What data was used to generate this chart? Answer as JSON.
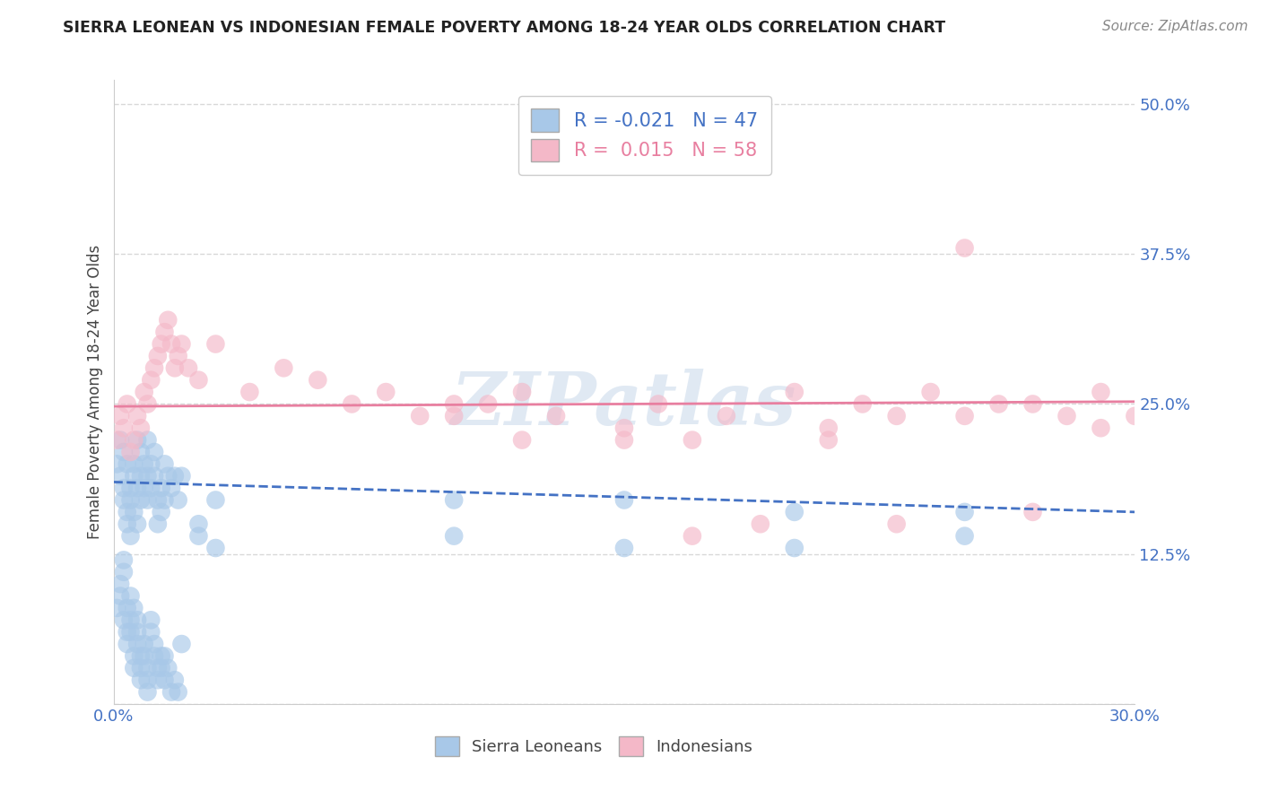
{
  "title": "SIERRA LEONEAN VS INDONESIAN FEMALE POVERTY AMONG 18-24 YEAR OLDS CORRELATION CHART",
  "source": "Source: ZipAtlas.com",
  "ylabel": "Female Poverty Among 18-24 Year Olds",
  "xlim": [
    0.0,
    0.3
  ],
  "ylim": [
    0.0,
    0.52
  ],
  "xticks": [
    0.0,
    0.05,
    0.1,
    0.15,
    0.2,
    0.25,
    0.3
  ],
  "xticklabels": [
    "0.0%",
    "",
    "",
    "",
    "",
    "",
    "30.0%"
  ],
  "yticks": [
    0.0,
    0.125,
    0.25,
    0.375,
    0.5
  ],
  "yticklabels": [
    "",
    "12.5%",
    "25.0%",
    "37.5%",
    "50.0%"
  ],
  "sierra_color": "#a8c8e8",
  "indonesia_color": "#f4b8c8",
  "sierra_line_color": "#4472c4",
  "indonesia_line_color": "#e87fa0",
  "watermark": "ZIPatlas",
  "sl_trend_y0": 0.185,
  "sl_trend_y1": 0.16,
  "in_trend_y0": 0.248,
  "in_trend_y1": 0.252,
  "sierra_x": [
    0.001,
    0.002,
    0.002,
    0.003,
    0.003,
    0.003,
    0.004,
    0.004,
    0.004,
    0.005,
    0.005,
    0.005,
    0.006,
    0.006,
    0.006,
    0.007,
    0.007,
    0.007,
    0.008,
    0.008,
    0.008,
    0.009,
    0.009,
    0.01,
    0.01,
    0.01,
    0.011,
    0.011,
    0.012,
    0.012,
    0.013,
    0.013,
    0.014,
    0.014,
    0.015,
    0.015,
    0.016,
    0.017,
    0.018,
    0.019,
    0.02,
    0.025,
    0.03,
    0.1,
    0.15,
    0.2,
    0.25
  ],
  "sierra_y": [
    0.2,
    0.22,
    0.19,
    0.21,
    0.18,
    0.17,
    0.2,
    0.16,
    0.15,
    0.18,
    0.17,
    0.14,
    0.2,
    0.19,
    0.16,
    0.22,
    0.18,
    0.15,
    0.21,
    0.19,
    0.17,
    0.2,
    0.18,
    0.22,
    0.19,
    0.17,
    0.2,
    0.18,
    0.21,
    0.19,
    0.17,
    0.15,
    0.18,
    0.16,
    0.2,
    0.17,
    0.19,
    0.18,
    0.19,
    0.17,
    0.19,
    0.15,
    0.17,
    0.17,
    0.17,
    0.16,
    0.16
  ],
  "sierra_y_low": [
    0.08,
    0.1,
    0.09,
    0.07,
    0.11,
    0.12,
    0.06,
    0.05,
    0.08,
    0.07,
    0.09,
    0.06,
    0.08,
    0.04,
    0.03,
    0.05,
    0.07,
    0.06,
    0.04,
    0.03,
    0.02,
    0.05,
    0.04,
    0.03,
    0.02,
    0.01,
    0.07,
    0.06,
    0.05,
    0.04,
    0.03,
    0.02,
    0.04,
    0.03,
    0.02,
    0.04,
    0.03,
    0.01,
    0.02,
    0.01,
    0.05,
    0.14,
    0.13,
    0.14,
    0.13,
    0.13,
    0.14
  ],
  "indonesia_x": [
    0.001,
    0.002,
    0.003,
    0.004,
    0.005,
    0.006,
    0.007,
    0.008,
    0.009,
    0.01,
    0.011,
    0.012,
    0.013,
    0.014,
    0.015,
    0.016,
    0.017,
    0.018,
    0.019,
    0.02,
    0.022,
    0.025,
    0.03,
    0.04,
    0.05,
    0.06,
    0.07,
    0.08,
    0.09,
    0.1,
    0.11,
    0.12,
    0.13,
    0.15,
    0.16,
    0.17,
    0.18,
    0.2,
    0.21,
    0.22,
    0.23,
    0.24,
    0.25,
    0.26,
    0.27,
    0.28,
    0.29,
    0.1,
    0.12,
    0.15,
    0.17,
    0.19,
    0.21,
    0.23,
    0.25,
    0.27,
    0.29,
    0.3
  ],
  "indonesia_y": [
    0.22,
    0.24,
    0.23,
    0.25,
    0.21,
    0.22,
    0.24,
    0.23,
    0.26,
    0.25,
    0.27,
    0.28,
    0.29,
    0.3,
    0.31,
    0.32,
    0.3,
    0.28,
    0.29,
    0.3,
    0.28,
    0.27,
    0.3,
    0.26,
    0.28,
    0.27,
    0.25,
    0.26,
    0.24,
    0.25,
    0.25,
    0.26,
    0.24,
    0.23,
    0.25,
    0.22,
    0.24,
    0.26,
    0.22,
    0.25,
    0.24,
    0.26,
    0.38,
    0.25,
    0.25,
    0.24,
    0.26,
    0.24,
    0.22,
    0.22,
    0.14,
    0.15,
    0.23,
    0.15,
    0.24,
    0.16,
    0.23,
    0.24
  ],
  "grid_color": "#d8d8d8",
  "background_color": "#ffffff",
  "title_color": "#222222",
  "source_color": "#888888",
  "tick_color": "#4472c4",
  "ylabel_color": "#444444",
  "legend_r1_text": "R = -0.021   N = 47",
  "legend_r2_text": "R =  0.015   N = 58"
}
